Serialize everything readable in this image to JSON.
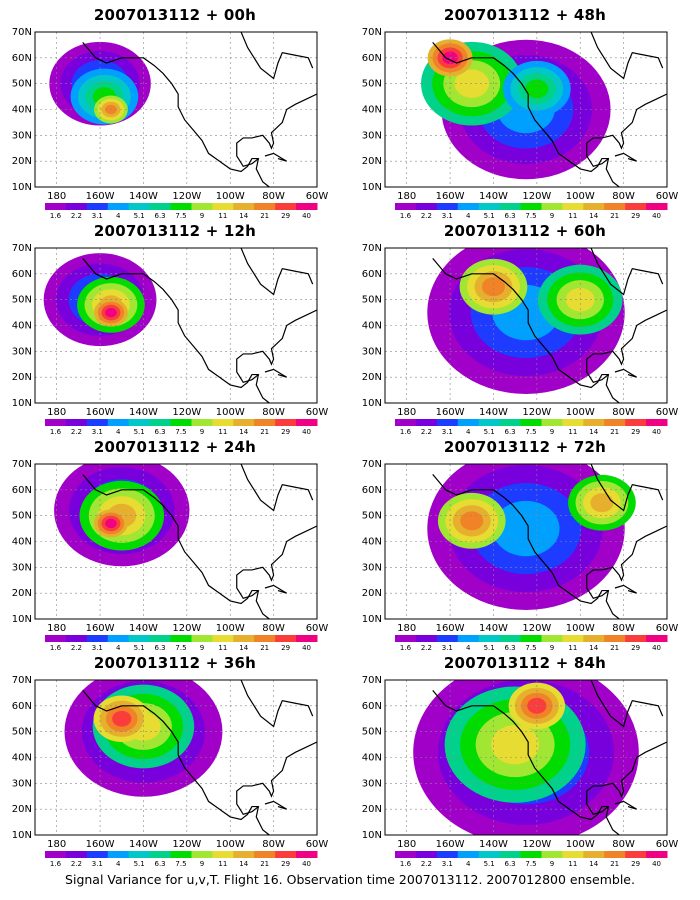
{
  "caption": "Signal Variance for u,v,T. Flight 16. Observation time 2007013112. 2007012800 ensemble.",
  "panels": [
    {
      "title": "2007013112 + 00h"
    },
    {
      "title": "2007013112 + 48h"
    },
    {
      "title": "2007013112 + 12h"
    },
    {
      "title": "2007013112 + 60h"
    },
    {
      "title": "2007013112 + 24h"
    },
    {
      "title": "2007013112 + 72h"
    },
    {
      "title": "2007013112 + 36h"
    },
    {
      "title": "2007013112 + 84h"
    }
  ],
  "axes": {
    "lon_ticks": [
      "180",
      "160W",
      "140W",
      "120W",
      "100W",
      "80W",
      "60W"
    ],
    "lat_ticks": [
      "10N",
      "20N",
      "30N",
      "40N",
      "50N",
      "60N",
      "70N"
    ],
    "lon_range": [
      -190,
      -60
    ],
    "lat_range": [
      10,
      70
    ]
  },
  "colorbar": {
    "labels": [
      "1.6",
      "2.2",
      "3.1",
      "4",
      "5.1",
      "6.3",
      "7.5",
      "9",
      "11",
      "14",
      "21",
      "29",
      "40"
    ],
    "colors": [
      "#a000c8",
      "#7800dc",
      "#1e3cff",
      "#00a0ff",
      "#00c8c8",
      "#00d28c",
      "#00dc00",
      "#a0e632",
      "#e6dc32",
      "#e6af2d",
      "#f08228",
      "#fa3c3c",
      "#f00082"
    ]
  },
  "fields": [
    [
      {
        "lon": -155,
        "lat": 40,
        "r": 6,
        "lvl": 7
      },
      {
        "lon": -158,
        "lat": 45,
        "r": 12,
        "lvl": 3
      },
      {
        "lon": -160,
        "lat": 50,
        "r": 18,
        "lvl": 0
      }
    ],
    [
      {
        "lon": -160,
        "lat": 60,
        "r": 8,
        "lvl": 9
      },
      {
        "lon": -150,
        "lat": 50,
        "r": 18,
        "lvl": 5
      },
      {
        "lon": -120,
        "lat": 48,
        "r": 12,
        "lvl": 3
      },
      {
        "lon": -125,
        "lat": 40,
        "r": 30,
        "lvl": 0
      }
    ],
    [
      {
        "lon": -155,
        "lat": 45,
        "r": 6,
        "lvl": 9
      },
      {
        "lon": -155,
        "lat": 48,
        "r": 12,
        "lvl": 6
      },
      {
        "lon": -160,
        "lat": 50,
        "r": 20,
        "lvl": 0
      }
    ],
    [
      {
        "lon": -140,
        "lat": 55,
        "r": 12,
        "lvl": 7
      },
      {
        "lon": -100,
        "lat": 50,
        "r": 15,
        "lvl": 5
      },
      {
        "lon": -125,
        "lat": 45,
        "r": 35,
        "lvl": 0
      }
    ],
    [
      {
        "lon": -155,
        "lat": 47,
        "r": 6,
        "lvl": 9
      },
      {
        "lon": -150,
        "lat": 50,
        "r": 15,
        "lvl": 6
      },
      {
        "lon": -150,
        "lat": 52,
        "r": 24,
        "lvl": 0
      }
    ],
    [
      {
        "lon": -150,
        "lat": 48,
        "r": 12,
        "lvl": 7
      },
      {
        "lon": -90,
        "lat": 55,
        "r": 12,
        "lvl": 6
      },
      {
        "lon": -125,
        "lat": 45,
        "r": 35,
        "lvl": 0
      }
    ],
    [
      {
        "lon": -150,
        "lat": 55,
        "r": 10,
        "lvl": 8
      },
      {
        "lon": -140,
        "lat": 52,
        "r": 18,
        "lvl": 5
      },
      {
        "lon": -140,
        "lat": 50,
        "r": 28,
        "lvl": 0
      }
    ],
    [
      {
        "lon": -120,
        "lat": 60,
        "r": 10,
        "lvl": 8
      },
      {
        "lon": -130,
        "lat": 45,
        "r": 25,
        "lvl": 5
      },
      {
        "lon": -125,
        "lat": 42,
        "r": 40,
        "lvl": 0
      }
    ]
  ]
}
